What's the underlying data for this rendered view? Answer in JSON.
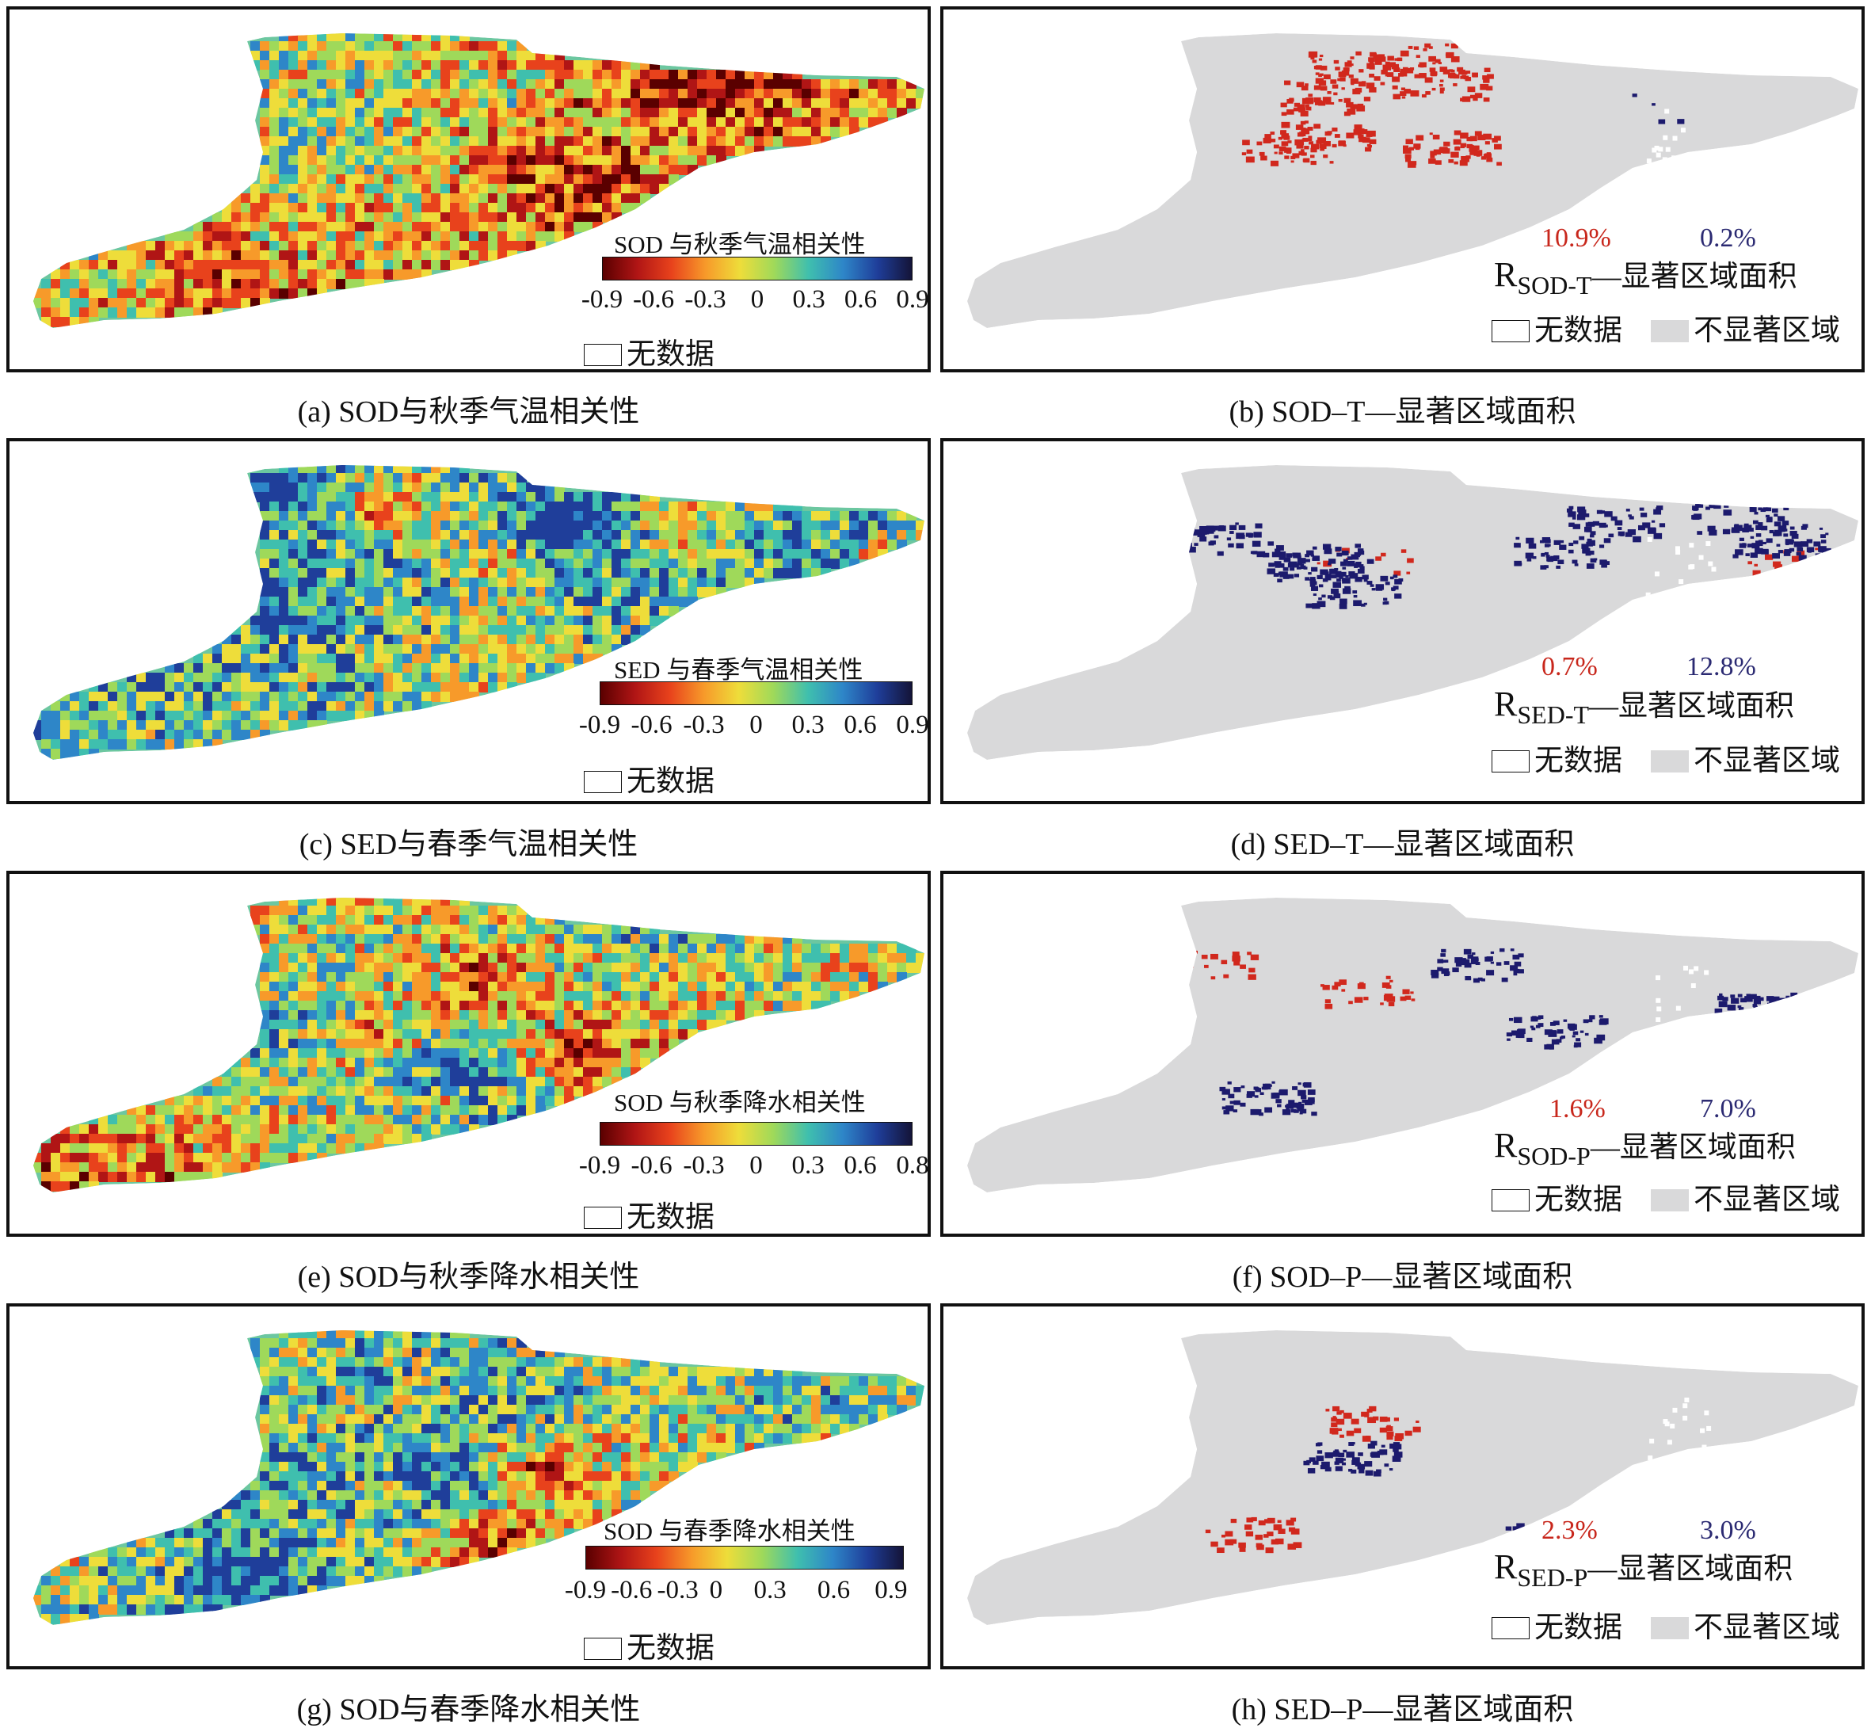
{
  "colors": {
    "neg_sig": "#d1281d",
    "pos_sig": "#1c1a6d",
    "nonsig_gray": "#d9d9da",
    "nodata_white": "#ffffff"
  },
  "corr_panels": [
    {
      "id": "a",
      "legend_title": "SOD 与秋季气温相关性",
      "ticks": [
        "-0.9",
        "-0.6",
        "-0.3",
        "0",
        "0.3",
        "0.6",
        "0.9"
      ],
      "nodata": "无数据",
      "caption": "(a) SOD与秋季气温相关性"
    },
    {
      "id": "c",
      "legend_title": "SED 与春季气温相关性",
      "ticks": [
        "-0.9",
        "-0.6",
        "-0.3",
        "0",
        "0.3",
        "0.6",
        "0.9"
      ],
      "nodata": "无数据",
      "caption": "(c) SED与春季气温相关性"
    },
    {
      "id": "e",
      "legend_title": "SOD 与秋季降水相关性",
      "ticks": [
        "-0.9",
        "-0.6",
        "-0.3",
        "0",
        "0.3",
        "0.6",
        "0.8"
      ],
      "nodata": "无数据",
      "caption": "(e) SOD与秋季降水相关性"
    },
    {
      "id": "g",
      "legend_title": "SOD  与春季降水相关性",
      "ticks": [
        "-0.9",
        "-0.6",
        "-0.3",
        "0",
        "0.3",
        "0.6",
        "0.9"
      ],
      "nodata": "无数据",
      "caption": "(g) SOD与春季降水相关性"
    }
  ],
  "sig_panels": [
    {
      "id": "b",
      "neg_pct": "10.9%",
      "pos_pct": "0.2%",
      "r_main": "R",
      "r_sub": "SOD-T",
      "r_rest": "—显著区域面积",
      "nodata": "无数据",
      "nonsig": "不显著区域",
      "caption": "(b) SOD–T—显著区域面积"
    },
    {
      "id": "d",
      "neg_pct": "0.7%",
      "pos_pct": "12.8%",
      "r_main": "R",
      "r_sub": "SED-T",
      "r_rest": "—显著区域面积",
      "nodata": "无数据",
      "nonsig": "不显著区域",
      "caption": "(d) SED–T—显著区域面积"
    },
    {
      "id": "f",
      "neg_pct": "1.6%",
      "pos_pct": "7.0%",
      "r_main": "R",
      "r_sub": "SOD-P",
      "r_rest": "—显著区域面积",
      "nodata": "无数据",
      "nonsig": "不显著区域",
      "caption": "(f) SOD–P—显著区域面积"
    },
    {
      "id": "h",
      "neg_pct": "2.3%",
      "pos_pct": "3.0%",
      "r_main": "R",
      "r_sub": "SED-P",
      "r_rest": "—显著区域面积",
      "nodata": "无数据",
      "nonsig": "不显著区域",
      "caption": "(h) SED–P—显著区域面积"
    }
  ]
}
